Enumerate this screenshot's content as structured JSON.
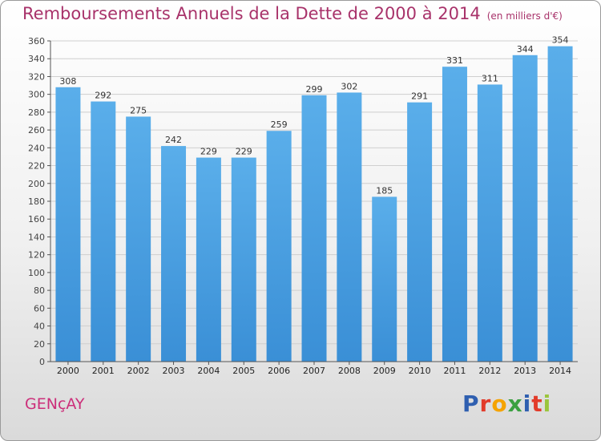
{
  "chart_data": {
    "type": "bar",
    "title": "Remboursements Annuels de la Dette de 2000 à 2014",
    "unit_label": "(en milliers d'€)",
    "categories": [
      "2000",
      "2001",
      "2002",
      "2003",
      "2004",
      "2005",
      "2006",
      "2007",
      "2008",
      "2009",
      "2010",
      "2011",
      "2012",
      "2013",
      "2014"
    ],
    "values": [
      308,
      292,
      275,
      242,
      229,
      229,
      259,
      299,
      302,
      185,
      291,
      331,
      311,
      344,
      354
    ],
    "ylim": [
      0,
      360
    ],
    "ytick_step": 20,
    "grid": true,
    "bar_color": "#3a8fd6",
    "bar_color_light": "#5aaeea"
  },
  "footer": {
    "city": "GENçAY",
    "logo_text": "Proxiti",
    "logo_colors": [
      "#2f5fb0",
      "#e23b2a",
      "#f5a300",
      "#3aa040",
      "#2f5fb0",
      "#e23b2a",
      "#9bc53d"
    ]
  }
}
